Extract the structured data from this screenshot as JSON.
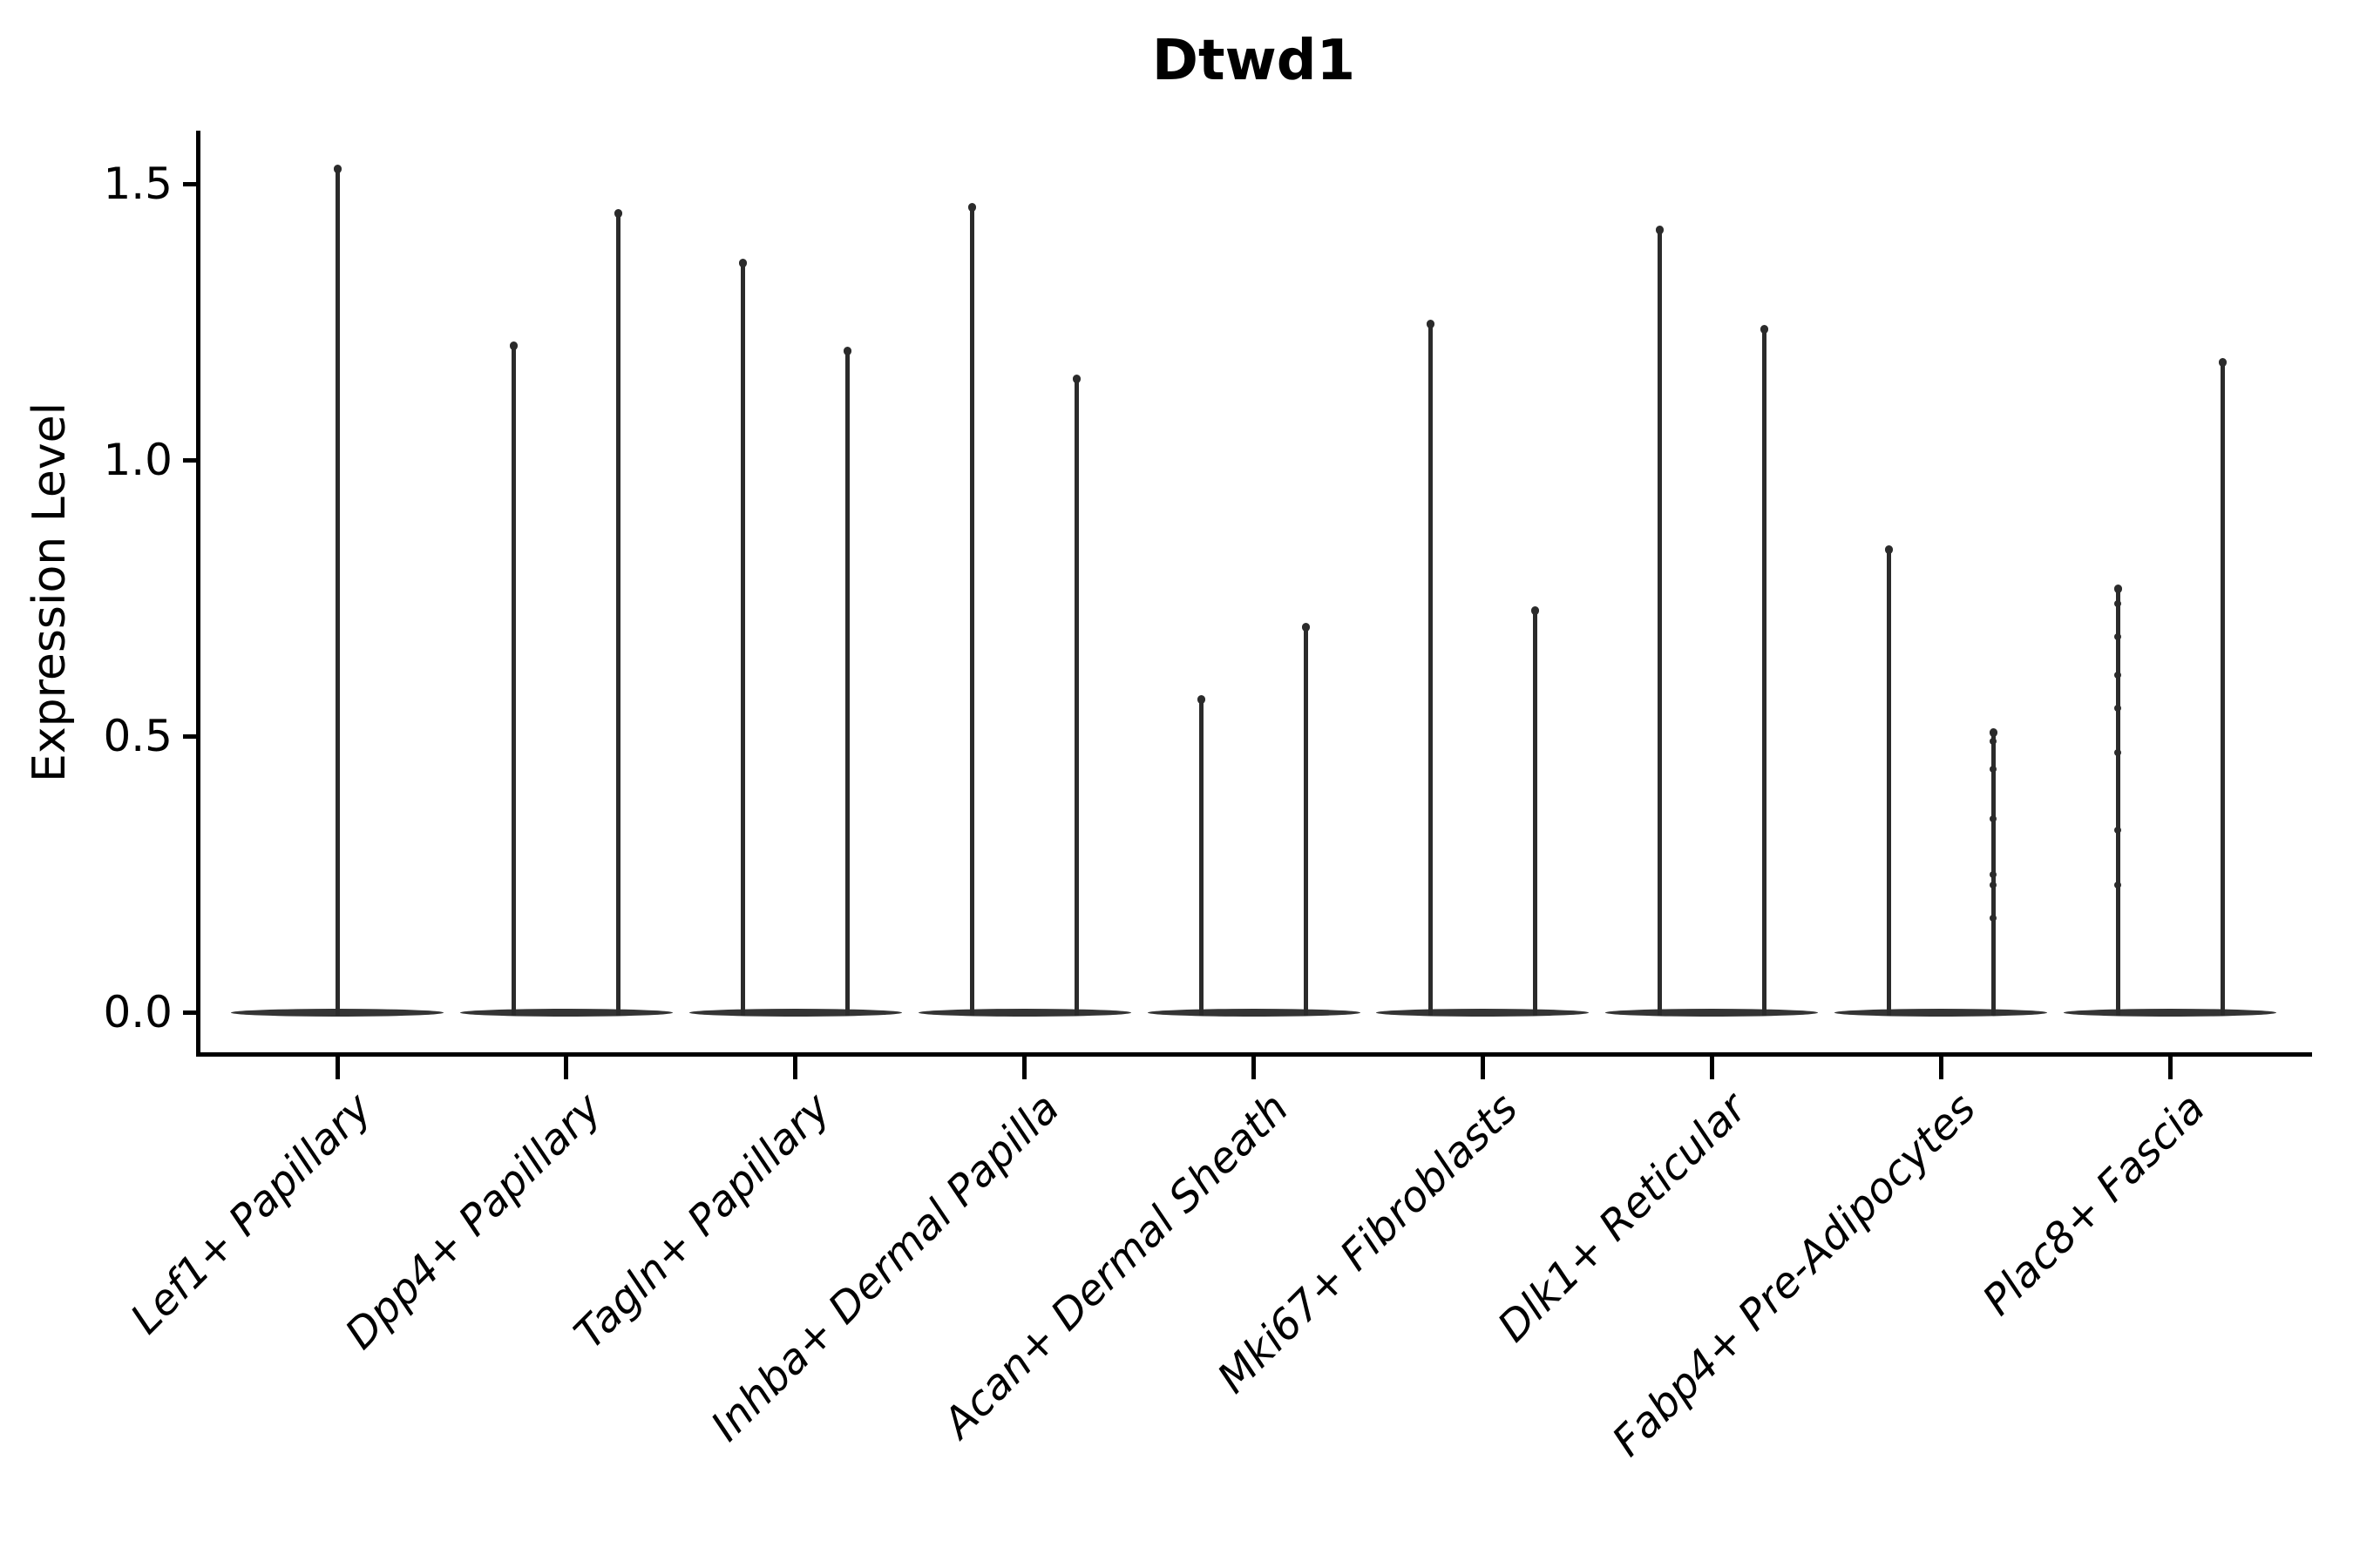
{
  "title": "Dtwd1",
  "y_axis": {
    "label": "Expression Level",
    "tick_labels": [
      "0.0",
      "0.5",
      "1.0",
      "1.5"
    ]
  },
  "x_axis": {
    "categories": [
      "Lef1+ Papillary",
      "Dpp4+ Papillary",
      "Tagln+ Papillary",
      "Inhba+ Dermal Papilla",
      "Acan+ Dermal Sheath",
      "Mki67+ Fibroblasts",
      "Dlk1+ Reticular",
      "Fabp4+ Pre-Adipocytes",
      "Plac8+ Fascia"
    ]
  },
  "chart_data": {
    "type": "violin",
    "title": "Dtwd1",
    "xlabel": "",
    "ylabel": "Expression Level",
    "yticks": [
      0.0,
      0.5,
      1.0,
      1.5
    ],
    "ylim": [
      -0.08,
      1.6
    ],
    "grid": false,
    "legend": false,
    "categories": [
      "Lef1+ Papillary",
      "Dpp4+ Papillary",
      "Tagln+ Papillary",
      "Inhba+ Dermal Papilla",
      "Acan+ Dermal Sheath",
      "Mki67+ Fibroblasts",
      "Dlk1+ Reticular",
      "Fabp4+ Pre-Adipocytes",
      "Plac8+ Fascia"
    ],
    "violin_description": "Expression collapsed at 0 for most cells; each violin is a flat base at 0 with a thin spike up to its maximum expression value",
    "violins": [
      {
        "category": "Lef1+ Papillary",
        "spike_maxima": [
          1.53
        ]
      },
      {
        "category": "Dpp4+ Papillary",
        "spike_maxima": [
          1.21,
          1.45
        ]
      },
      {
        "category": "Tagln+ Papillary",
        "spike_maxima": [
          1.36,
          1.2
        ]
      },
      {
        "category": "Inhba+ Dermal Papilla",
        "spike_maxima": [
          1.46,
          1.15
        ]
      },
      {
        "category": "Acan+ Dermal Sheath",
        "spike_maxima": [
          0.57,
          0.7
        ]
      },
      {
        "category": "Mki67+ Fibroblasts",
        "spike_maxima": [
          1.25,
          0.73
        ]
      },
      {
        "category": "Dlk1+ Reticular",
        "spike_maxima": [
          1.42,
          1.24
        ]
      },
      {
        "category": "Fabp4+ Pre-Adipocytes",
        "spike_maxima": [
          0.84,
          0.51
        ],
        "jitter_points": [
          [],
          [
            0.49,
            0.44,
            0.35,
            0.25,
            0.23,
            0.17
          ]
        ]
      },
      {
        "category": "Plac8+ Fascia",
        "spike_maxima": [
          0.77,
          1.18
        ],
        "jitter_points": [
          [
            0.74,
            0.68,
            0.61,
            0.55,
            0.47,
            0.33,
            0.23
          ],
          []
        ]
      }
    ],
    "colors": {
      "violin_fill": "#343434",
      "violin_edge": "#2b2b2b",
      "axis": "#000000",
      "text": "#000000",
      "background": "#ffffff"
    }
  }
}
